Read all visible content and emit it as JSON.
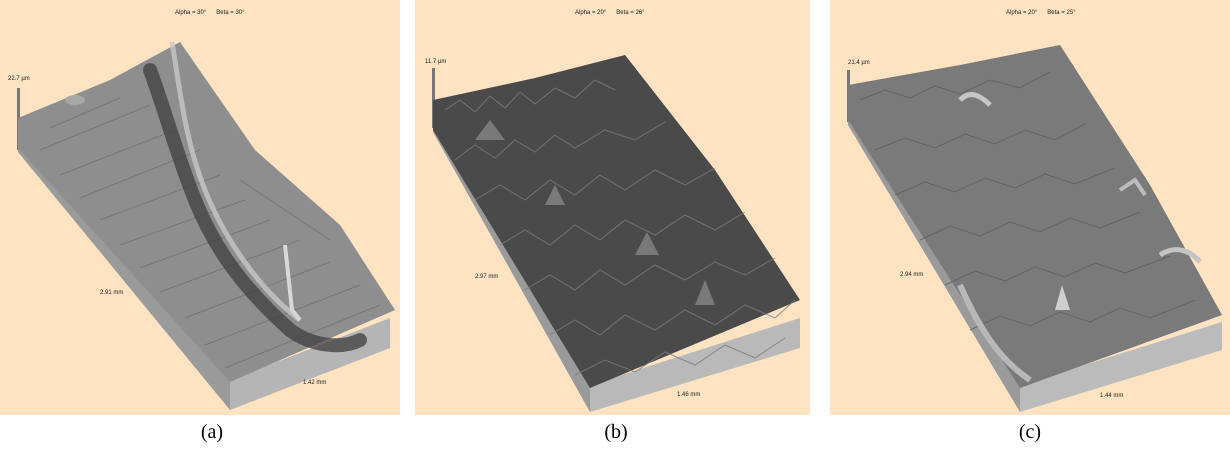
{
  "panels": [
    {
      "view": {
        "alpha": "Alpha = 30°",
        "beta": "Beta = 30°"
      },
      "z_height": "22.7 µm",
      "length": "2.91 mm",
      "width": "1.42 mm",
      "caption": "(a)"
    },
    {
      "view": {
        "alpha": "Alpha = 20°",
        "beta": "Beta = 26°"
      },
      "z_height": "11.7 µm",
      "length": "2.97 mm",
      "width": "1.46 mm",
      "caption": "(b)"
    },
    {
      "view": {
        "alpha": "Alpha = 20°",
        "beta": "Beta = 25°"
      },
      "z_height": "21.4 µm",
      "length": "2.94 mm",
      "width": "1.44 mm",
      "caption": "(c)"
    }
  ],
  "colors": {
    "background": "#fde3c2",
    "surface_a": "#8e8e8e",
    "surface_b": "#4a4a4a",
    "surface_c": "#7a7a7a"
  }
}
